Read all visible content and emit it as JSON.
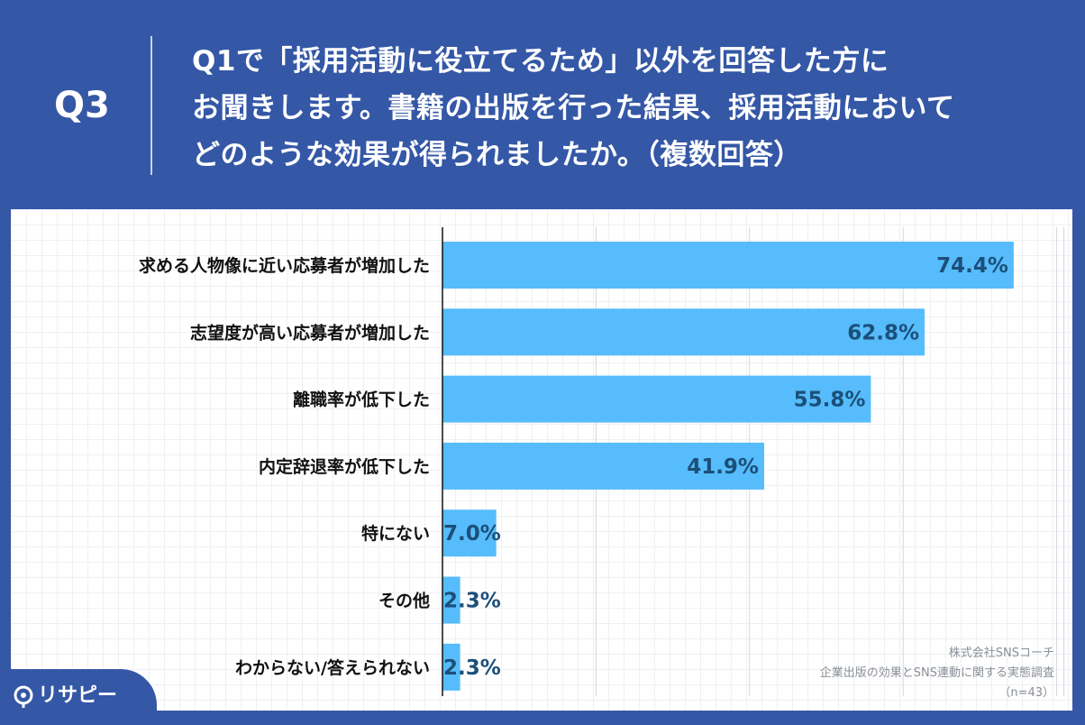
{
  "header": {
    "q_label": "Q3",
    "question_lines": [
      "Q1で「採用活動に役立てるため」以外を回答した方に",
      "お聞きします。書籍の出版を行った結果、採用活動において",
      "どのような効果が得られましたか。（複数回答）"
    ]
  },
  "chart_data": {
    "type": "bar",
    "orientation": "horizontal",
    "categories": [
      "求める人物像に近い応募者が増加した",
      "志望度が高い応募者が増加した",
      "離職率が低下した",
      "内定辞退率が低下した",
      "特にない",
      "その他",
      "わからない/答えられない"
    ],
    "values": [
      74.4,
      62.8,
      55.8,
      41.9,
      7.0,
      2.3,
      2.3
    ],
    "value_labels": [
      "74.4%",
      "62.8%",
      "55.8%",
      "41.9%",
      "7.0%",
      "2.3%",
      "2.3%"
    ],
    "xlim": [
      0,
      80
    ],
    "grid": true,
    "bar_color": "#56bcfb",
    "label_color": "#1c4f79"
  },
  "source": {
    "lines": [
      "株式会社SNSコーチ",
      "企業出版の効果とSNS連動に関する実態調査",
      "（n=43）"
    ]
  },
  "logo": {
    "text": "リサピー",
    "icon": "map-pin-icon"
  },
  "colors": {
    "background": "#3457a6",
    "panel": "#ffffff",
    "bar": "#56bcfb"
  }
}
